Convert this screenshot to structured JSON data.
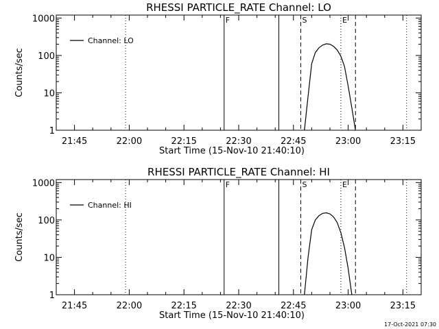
{
  "footer": {
    "timestamp": "17-Oct-2021 07:30"
  },
  "chart_data": [
    {
      "type": "line",
      "title": "RHESSI PARTICLE_RATE Channel: LO",
      "xlabel": "Start Time (15-Nov-10 21:40:10)",
      "ylabel": "Counts/sec",
      "y_scale": "log",
      "ylim": [
        1,
        1200
      ],
      "xlim": [
        "21:40",
        "23:20"
      ],
      "x_ticks": [
        "21:45",
        "22:00",
        "22:15",
        "22:30",
        "22:45",
        "23:00",
        "23:15"
      ],
      "y_ticks": [
        "1",
        "10",
        "100",
        "1000"
      ],
      "legend": {
        "label": "Channel: LO",
        "position": "top-left"
      },
      "grid": false,
      "series": [
        {
          "name": "Channel: LO",
          "x": [
            "22:48",
            "22:49",
            "22:50",
            "22:51",
            "22:52",
            "22:53",
            "22:54",
            "22:55",
            "22:56",
            "22:57",
            "22:58",
            "22:59",
            "23:00",
            "23:01",
            "23:02"
          ],
          "y": [
            1,
            8,
            60,
            120,
            160,
            190,
            205,
            200,
            175,
            140,
            95,
            50,
            15,
            4,
            1
          ]
        }
      ],
      "vertical_lines": [
        {
          "x": "21:59",
          "style": "dotted",
          "label": ""
        },
        {
          "x": "22:26",
          "style": "solid",
          "label": "F"
        },
        {
          "x": "22:41",
          "style": "solid",
          "label": ""
        },
        {
          "x": "22:47",
          "style": "dashed",
          "label": "S"
        },
        {
          "x": "22:58",
          "style": "dotted",
          "label": ""
        },
        {
          "x": "22:58",
          "style": "dotted",
          "label": "E"
        },
        {
          "x": "23:02",
          "style": "dashed",
          "label": ""
        },
        {
          "x": "23:16",
          "style": "dotted",
          "label": ""
        }
      ]
    },
    {
      "type": "line",
      "title": "RHESSI PARTICLE_RATE Channel: HI",
      "xlabel": "Start Time (15-Nov-10 21:40:10)",
      "ylabel": "Counts/sec",
      "y_scale": "log",
      "ylim": [
        1,
        1200
      ],
      "xlim": [
        "21:40",
        "23:20"
      ],
      "x_ticks": [
        "21:45",
        "22:00",
        "22:15",
        "22:30",
        "22:45",
        "23:00",
        "23:15"
      ],
      "y_ticks": [
        "1",
        "10",
        "100",
        "1000"
      ],
      "legend": {
        "label": "Channel: HI",
        "position": "top-left"
      },
      "grid": false,
      "series": [
        {
          "name": "Channel: HI",
          "x": [
            "22:48",
            "22:49",
            "22:50",
            "22:51",
            "22:52",
            "22:53",
            "22:54",
            "22:55",
            "22:56",
            "22:57",
            "22:58",
            "22:59",
            "23:00",
            "23:01"
          ],
          "y": [
            1,
            10,
            55,
            100,
            130,
            150,
            155,
            145,
            120,
            85,
            45,
            18,
            5,
            1
          ]
        }
      ],
      "vertical_lines": [
        {
          "x": "21:59",
          "style": "dotted",
          "label": ""
        },
        {
          "x": "22:26",
          "style": "solid",
          "label": "F"
        },
        {
          "x": "22:41",
          "style": "solid",
          "label": ""
        },
        {
          "x": "22:47",
          "style": "dashed",
          "label": "S"
        },
        {
          "x": "22:58",
          "style": "dotted",
          "label": ""
        },
        {
          "x": "22:58",
          "style": "dotted",
          "label": "E"
        },
        {
          "x": "23:02",
          "style": "dashed",
          "label": ""
        },
        {
          "x": "23:16",
          "style": "dotted",
          "label": ""
        }
      ]
    }
  ]
}
